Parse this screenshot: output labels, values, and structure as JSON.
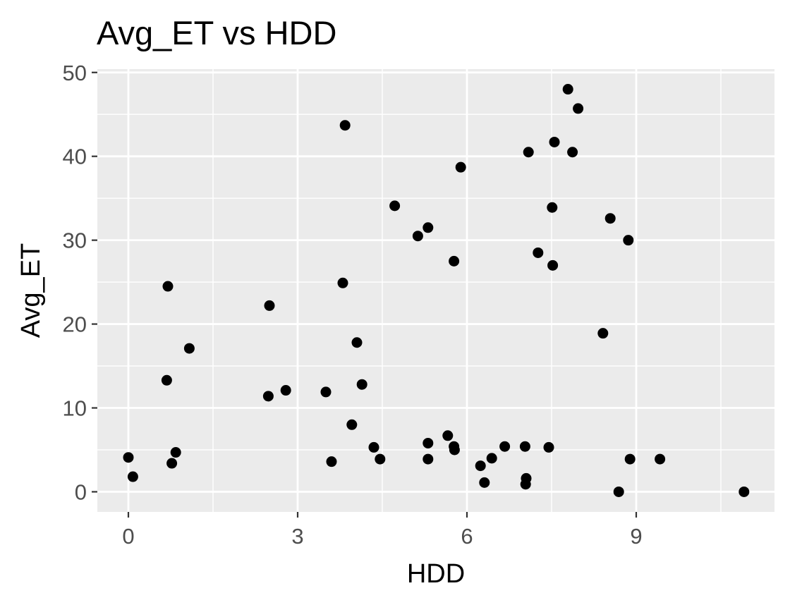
{
  "chart_data": {
    "type": "scatter",
    "title": "Avg_ET vs HDD",
    "xlabel": "HDD",
    "ylabel": "Avg_ET",
    "xlim": [
      -0.55,
      11.45
    ],
    "ylim": [
      -2.4,
      50.4
    ],
    "x_ticks": [
      0,
      3,
      6,
      9
    ],
    "x_tick_labels": [
      "0",
      "3",
      "6",
      "9"
    ],
    "y_ticks": [
      0,
      10,
      20,
      30,
      40,
      50
    ],
    "y_tick_labels": [
      "0",
      "10",
      "20",
      "30",
      "40",
      "50"
    ],
    "grid": true,
    "background": "#ebebeb",
    "grid_color": "#ffffff",
    "point_color": "#000000",
    "legend": "none",
    "series": [
      {
        "x": [
          0.0,
          0.08,
          0.68,
          0.7,
          0.77,
          0.84,
          1.08,
          2.48,
          2.5,
          2.79,
          3.5,
          3.6,
          3.8,
          3.84,
          3.96,
          4.05,
          4.14,
          4.35,
          4.46,
          4.72,
          5.13,
          5.31,
          5.31,
          5.31,
          5.66,
          5.77,
          5.77,
          5.78,
          5.89,
          6.24,
          6.31,
          6.44,
          6.67,
          7.03,
          7.04,
          7.05,
          7.09,
          7.26,
          7.45,
          7.51,
          7.52,
          7.55,
          7.79,
          7.87,
          7.97,
          8.41,
          8.54,
          8.69,
          8.86,
          8.89,
          9.42,
          10.91
        ],
        "y": [
          4.1,
          1.8,
          13.3,
          24.5,
          3.4,
          4.7,
          17.1,
          11.4,
          22.2,
          12.1,
          11.9,
          3.6,
          24.9,
          43.7,
          8.0,
          17.8,
          12.8,
          5.3,
          3.9,
          34.1,
          30.5,
          31.5,
          5.8,
          3.9,
          6.7,
          27.5,
          5.4,
          5.0,
          38.7,
          3.1,
          1.1,
          4.0,
          5.4,
          5.4,
          0.9,
          1.6,
          40.5,
          28.5,
          5.3,
          33.9,
          27.0,
          41.7,
          48.0,
          40.5,
          45.7,
          18.9,
          32.6,
          0.0,
          30.0,
          3.9,
          3.9,
          0.0
        ]
      }
    ]
  }
}
